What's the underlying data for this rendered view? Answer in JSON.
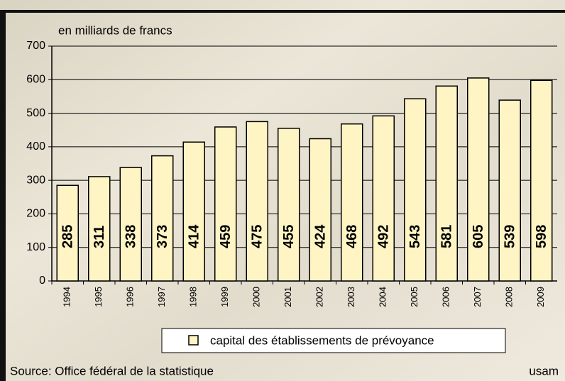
{
  "chart_data": {
    "type": "bar",
    "y_label": "en milliards de francs",
    "categories": [
      "1994",
      "1995",
      "1996",
      "1997",
      "1998",
      "1999",
      "2000",
      "2001",
      "2002",
      "2003",
      "2004",
      "2005",
      "2006",
      "2007",
      "2008",
      "2009"
    ],
    "series": [
      {
        "name": "capital des établissements de prévoyance",
        "color": "#fff4c4",
        "values": [
          285,
          311,
          338,
          373,
          414,
          459,
          475,
          455,
          424,
          468,
          492,
          543,
          581,
          605,
          539,
          598
        ]
      }
    ],
    "ylim": [
      0,
      700
    ],
    "yticks": [
      0,
      100,
      200,
      300,
      400,
      500,
      600,
      700
    ],
    "grid": true,
    "source": "Source: Office fédéral de la statistique",
    "brand": "usam"
  }
}
